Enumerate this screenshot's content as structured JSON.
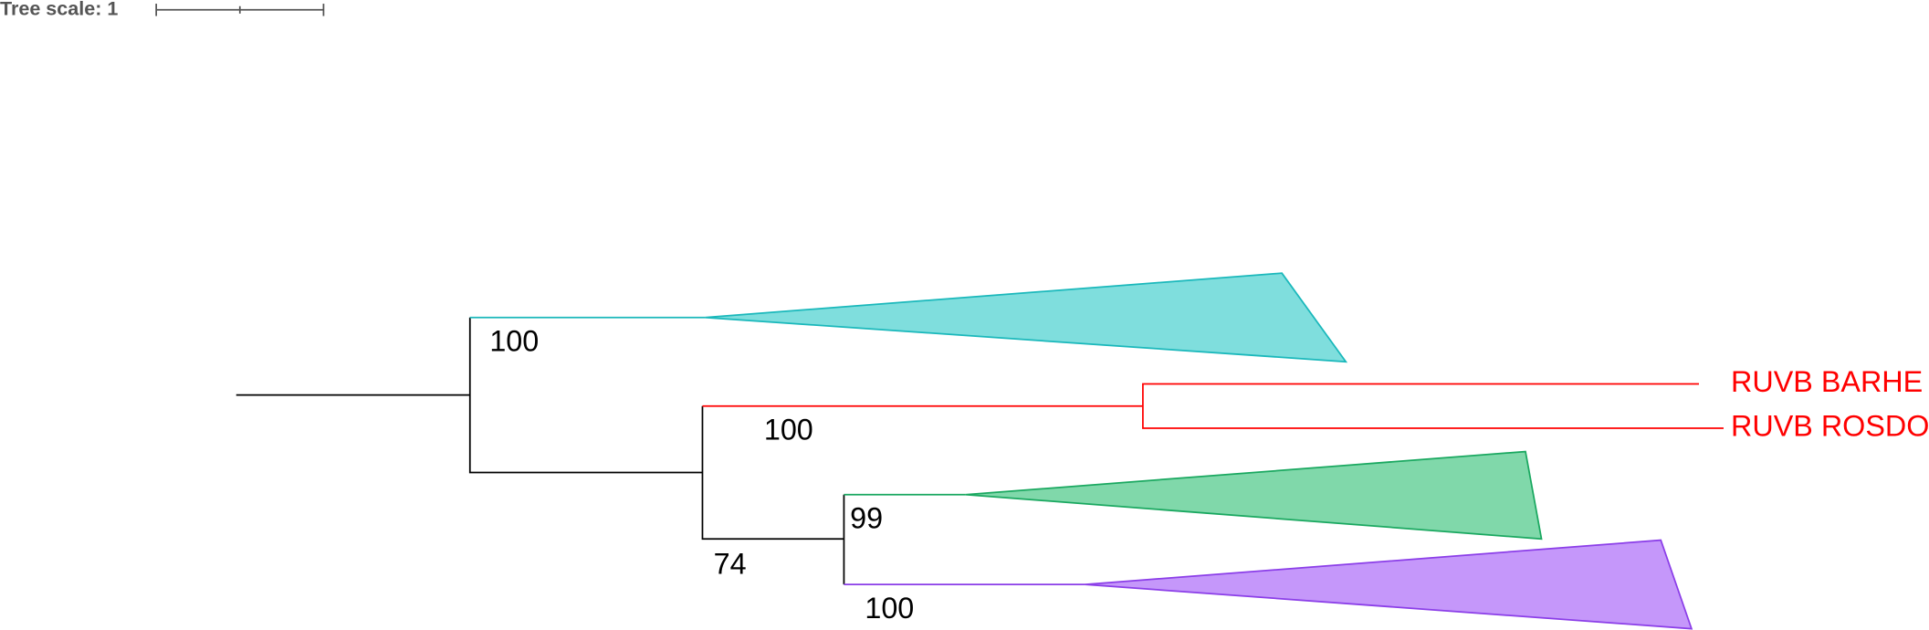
{
  "scale": {
    "label": "Tree scale: 1"
  },
  "nodes": [
    {
      "support": 100
    },
    {
      "support": 100
    },
    {
      "support": 74
    },
    {
      "support": 99
    },
    {
      "support": 100
    }
  ],
  "leaves": [
    {
      "label": "RUVB BARHE"
    },
    {
      "label": "RUVB ROSDO"
    }
  ]
}
